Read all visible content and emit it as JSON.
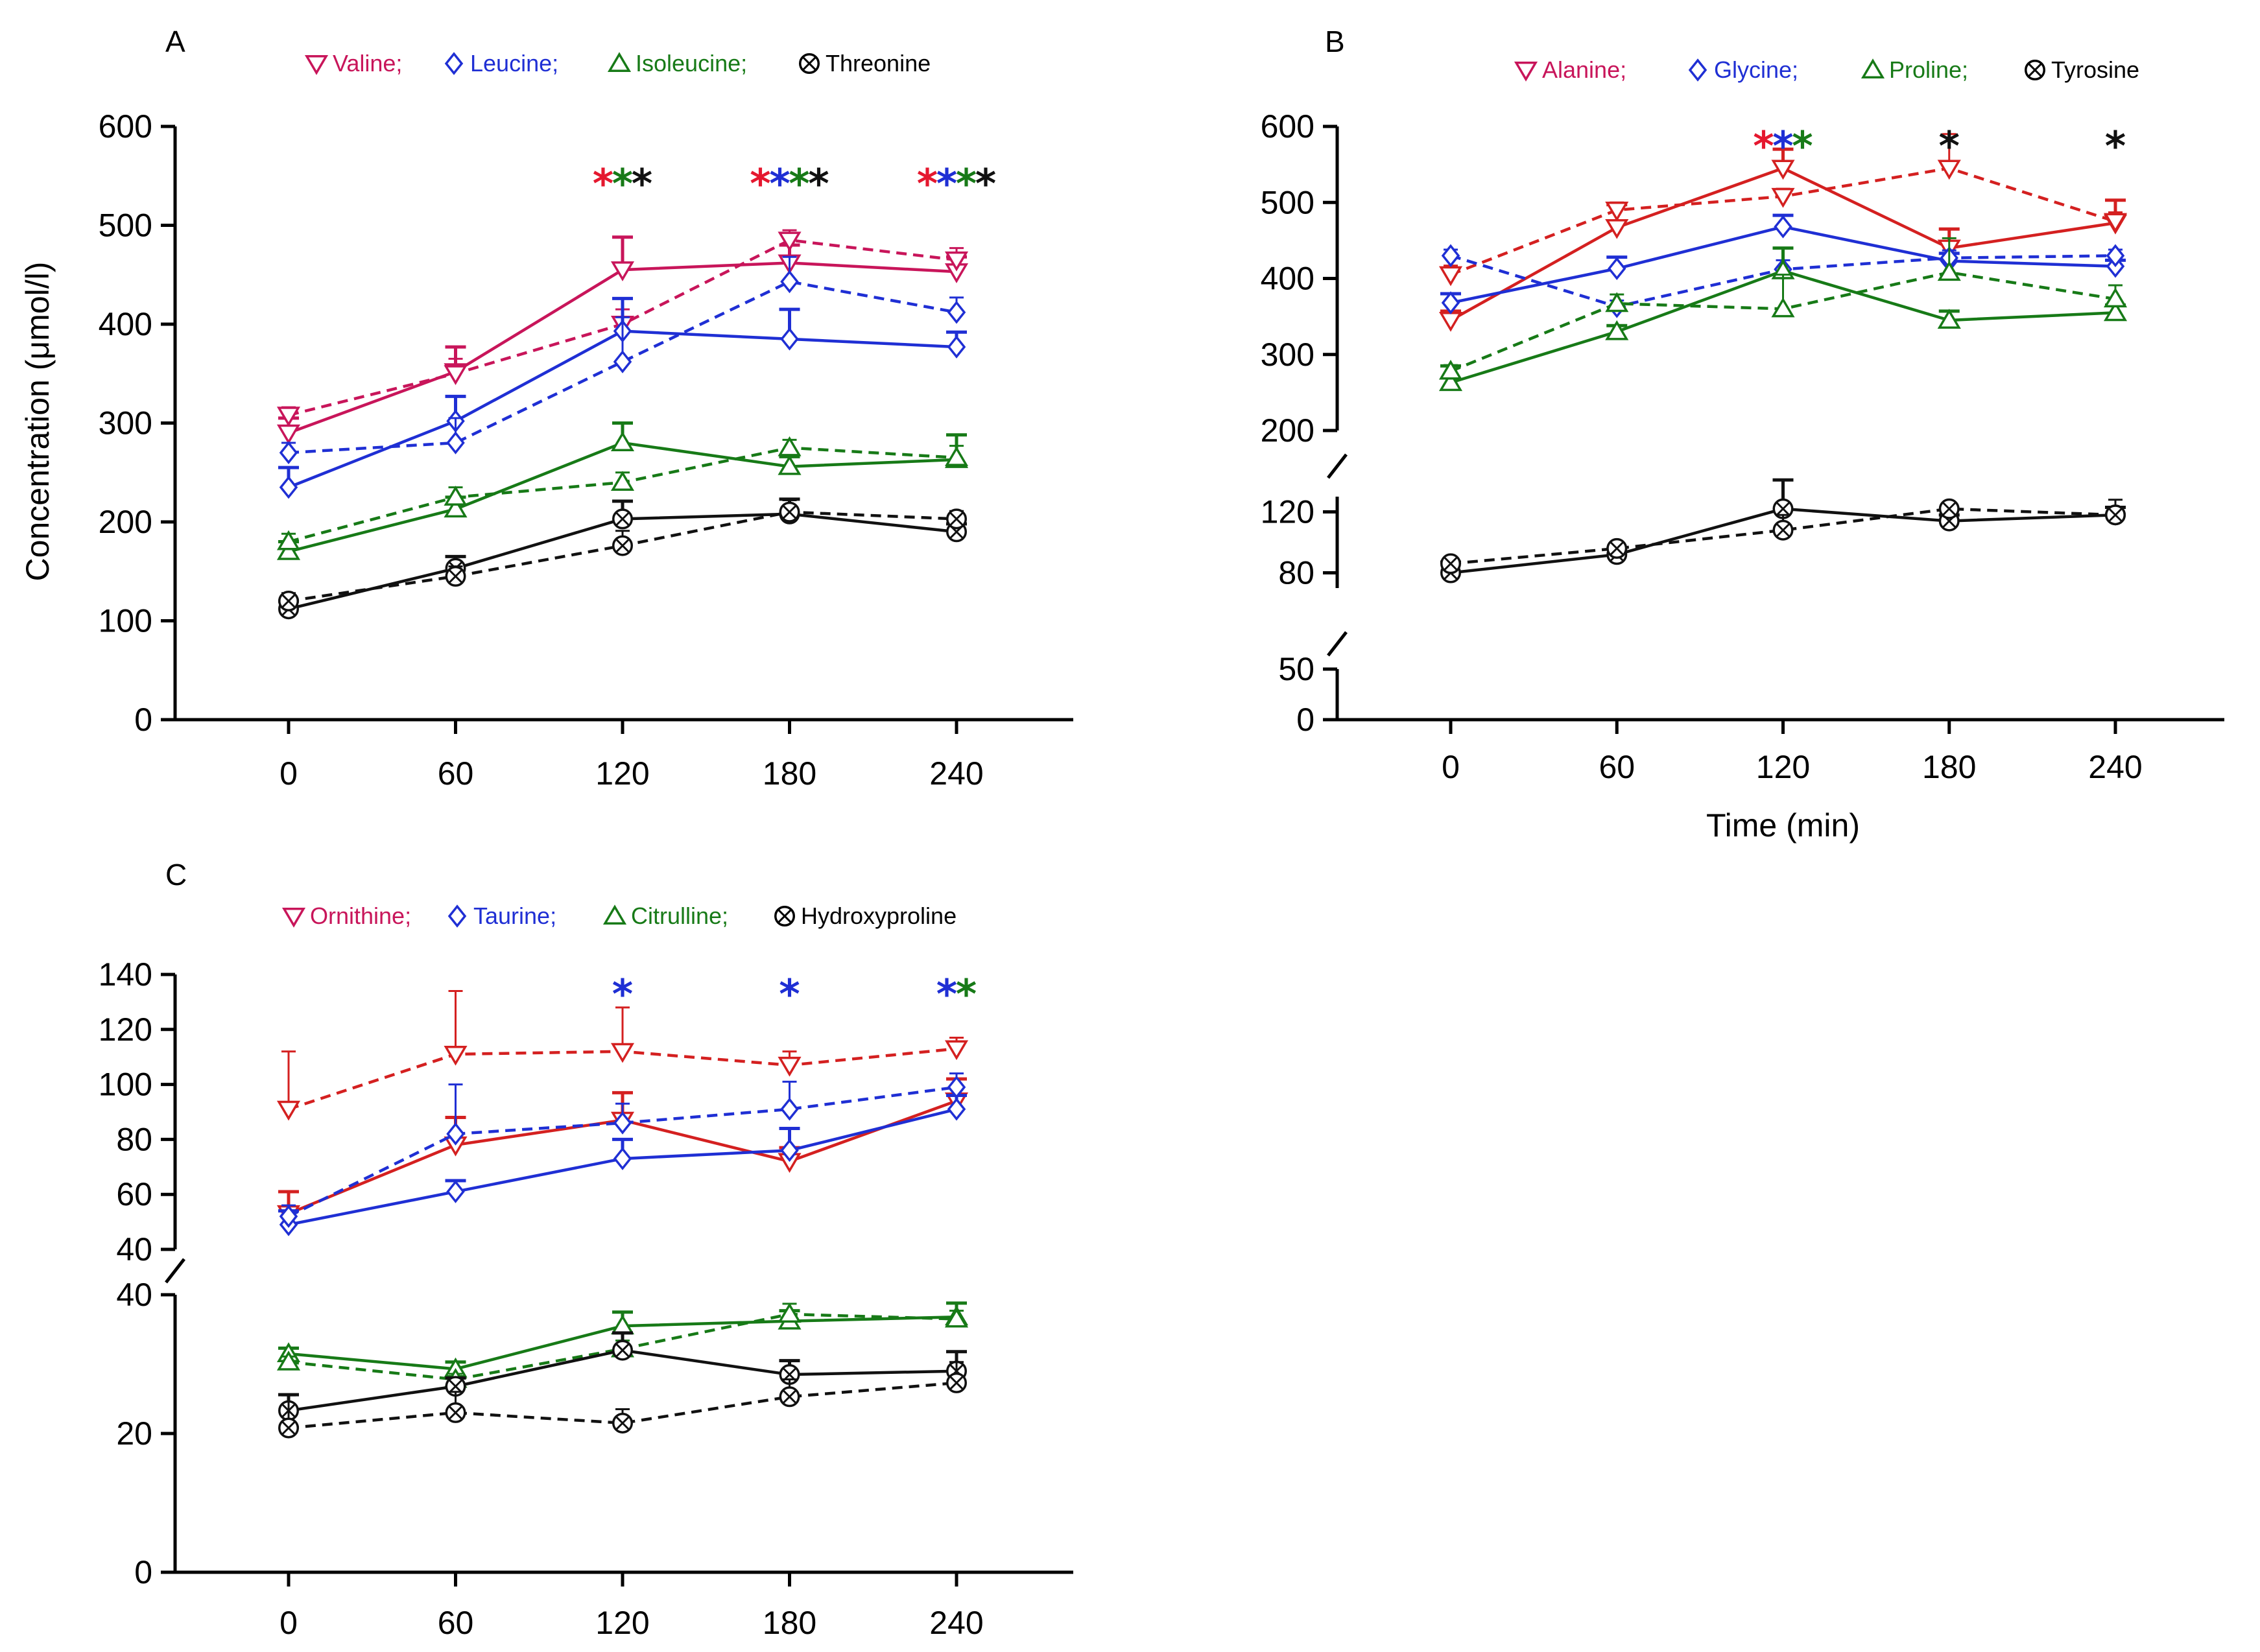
{
  "chart_data": [
    {
      "id": "A",
      "type": "line",
      "panel_label": "A",
      "title": "",
      "xlabel": "",
      "ylabel": "Concentration (μmol/l)",
      "x": [
        0,
        60,
        120,
        180,
        240
      ],
      "x_tick_labels": [
        "0",
        "60",
        "120",
        "180",
        "240"
      ],
      "xlim": [
        -40,
        290
      ],
      "y_segments": [
        {
          "range": [
            0,
            600
          ],
          "ticks": [
            0,
            100,
            200,
            300,
            400,
            500,
            600
          ],
          "tick_labels": [
            "0",
            "100",
            "200",
            "300",
            "400",
            "500",
            "600"
          ]
        }
      ],
      "legend": [
        {
          "label": "Valine;",
          "marker": "triangle-down",
          "color": "#c8155a"
        },
        {
          "label": "Leucine;",
          "marker": "diamond",
          "color": "#1f2fd4"
        },
        {
          "label": "Isoleucine;",
          "marker": "triangle-up",
          "color": "#177a17"
        },
        {
          "label": "Threonine",
          "marker": "circle-x",
          "color": "#000000"
        }
      ],
      "series": [
        {
          "name": "Valine solid",
          "color": "#c8155a",
          "marker": "triangle-down",
          "dashed": false,
          "values": [
            290,
            352,
            455,
            462,
            453
          ],
          "errors": [
            15,
            25,
            33,
            18,
            15
          ]
        },
        {
          "name": "Valine dashed",
          "color": "#c8155a",
          "marker": "triangle-down",
          "dashed": true,
          "values": [
            308,
            350,
            400,
            485,
            465
          ],
          "errors": [
            8,
            15,
            15,
            10,
            12
          ]
        },
        {
          "name": "Leucine solid",
          "color": "#1f2fd4",
          "marker": "diamond",
          "dashed": false,
          "values": [
            235,
            302,
            393,
            385,
            377
          ],
          "errors": [
            20,
            25,
            33,
            30,
            15
          ]
        },
        {
          "name": "Leucine dashed",
          "color": "#1f2fd4",
          "marker": "diamond",
          "dashed": true,
          "values": [
            270,
            280,
            362,
            443,
            412
          ],
          "errors": [
            10,
            25,
            45,
            25,
            15
          ]
        },
        {
          "name": "Isoleucine solid",
          "color": "#177a17",
          "marker": "triangle-up",
          "dashed": false,
          "values": [
            170,
            213,
            280,
            256,
            263
          ],
          "errors": [
            10,
            12,
            20,
            10,
            25
          ]
        },
        {
          "name": "Isoleucine dashed",
          "color": "#177a17",
          "marker": "triangle-up",
          "dashed": true,
          "values": [
            180,
            225,
            240,
            275,
            265
          ],
          "errors": [
            8,
            10,
            10,
            8,
            12
          ]
        },
        {
          "name": "Threonine solid",
          "color": "#111111",
          "marker": "circle-x",
          "dashed": false,
          "values": [
            112,
            153,
            203,
            208,
            190
          ],
          "errors": [
            8,
            12,
            18,
            15,
            8
          ]
        },
        {
          "name": "Threonine dashed",
          "color": "#111111",
          "marker": "circle-x",
          "dashed": true,
          "values": [
            120,
            145,
            176,
            210,
            203
          ],
          "errors": [
            8,
            10,
            15,
            12,
            8
          ]
        }
      ],
      "significance": [
        {
          "x": 120,
          "value": 562,
          "colors": [
            "#e5182f",
            "#177a17",
            "#111111"
          ]
        },
        {
          "x": 180,
          "value": 562,
          "colors": [
            "#e5182f",
            "#1f2fd4",
            "#177a17",
            "#111111"
          ]
        },
        {
          "x": 240,
          "value": 562,
          "colors": [
            "#e5182f",
            "#1f2fd4",
            "#177a17",
            "#111111"
          ]
        }
      ]
    },
    {
      "id": "B",
      "type": "line",
      "panel_label": "B",
      "title": "",
      "xlabel": "Time (min)",
      "ylabel": "",
      "x": [
        0,
        60,
        120,
        180,
        240
      ],
      "x_tick_labels": [
        "0",
        "60",
        "120",
        "180",
        "240"
      ],
      "xlim": [
        -40,
        290
      ],
      "y_segments": [
        {
          "range": [
            0,
            50
          ],
          "ticks": [
            0,
            50
          ],
          "tick_labels": [
            "0",
            "50"
          ]
        },
        {
          "range": [
            70,
            130
          ],
          "ticks": [
            80,
            120
          ],
          "tick_labels": [
            "80",
            "120"
          ]
        },
        {
          "range": [
            200,
            600
          ],
          "ticks": [
            200,
            300,
            400,
            500,
            600
          ],
          "tick_labels": [
            "200",
            "300",
            "400",
            "500",
            "600"
          ]
        }
      ],
      "legend": [
        {
          "label": "Alanine;",
          "marker": "triangle-down",
          "color": "#c8155a"
        },
        {
          "label": "Glycine;",
          "marker": "diamond",
          "color": "#1f2fd4"
        },
        {
          "label": "Proline;",
          "marker": "triangle-up",
          "color": "#177a17"
        },
        {
          "label": "Tyrosine",
          "marker": "circle-x",
          "color": "#000000"
        }
      ],
      "series": [
        {
          "name": "Alanine solid",
          "color": "#d42020",
          "marker": "triangle-down",
          "dashed": false,
          "values": [
            345,
            467,
            545,
            440,
            473
          ],
          "errors": [
            12,
            30,
            25,
            25,
            30
          ]
        },
        {
          "name": "Alanine dashed",
          "color": "#d42020",
          "marker": "triangle-down",
          "dashed": true,
          "values": [
            405,
            490,
            508,
            545,
            475
          ],
          "errors": [
            12,
            10,
            10,
            45,
            12
          ]
        },
        {
          "name": "Glycine solid",
          "color": "#1f2fd4",
          "marker": "diamond",
          "dashed": false,
          "values": [
            368,
            413,
            468,
            423,
            416
          ],
          "errors": [
            12,
            15,
            15,
            10,
            8
          ]
        },
        {
          "name": "Glycine dashed",
          "color": "#1f2fd4",
          "marker": "diamond",
          "dashed": true,
          "values": [
            430,
            363,
            412,
            427,
            430
          ],
          "errors": [
            8,
            8,
            12,
            10,
            8
          ]
        },
        {
          "name": "Proline solid",
          "color": "#177a17",
          "marker": "triangle-up",
          "dashed": false,
          "values": [
            263,
            330,
            410,
            345,
            355
          ],
          "errors": [
            22,
            8,
            30,
            12,
            10
          ]
        },
        {
          "name": "Proline dashed",
          "color": "#177a17",
          "marker": "triangle-up",
          "dashed": true,
          "values": [
            278,
            367,
            360,
            408,
            373
          ],
          "errors": [
            8,
            12,
            45,
            45,
            18
          ]
        },
        {
          "name": "Tyrosine solid",
          "color": "#111111",
          "marker": "circle-x",
          "dashed": false,
          "values": [
            80,
            92,
            122,
            114,
            118
          ],
          "errors": [
            7,
            4,
            13,
            4,
            5
          ]
        },
        {
          "name": "Tyrosine dashed",
          "color": "#111111",
          "marker": "circle-x",
          "dashed": true,
          "values": [
            86,
            96,
            108,
            122,
            118
          ],
          "errors": [
            3,
            3,
            10,
            3,
            10
          ]
        }
      ],
      "significance": [
        {
          "x": 120,
          "value": 600,
          "colors": [
            "#e5182f",
            "#1f2fd4",
            "#177a17"
          ]
        },
        {
          "x": 180,
          "value": 600,
          "colors": [
            "#111111"
          ]
        },
        {
          "x": 240,
          "value": 600,
          "colors": [
            "#111111"
          ]
        }
      ]
    },
    {
      "id": "C",
      "type": "line",
      "panel_label": "C",
      "title": "",
      "xlabel": "",
      "ylabel": "",
      "x": [
        0,
        60,
        120,
        180,
        240
      ],
      "x_tick_labels": [
        "0",
        "60",
        "120",
        "180",
        "240"
      ],
      "xlim": [
        -40,
        290
      ],
      "y_segments": [
        {
          "range": [
            0,
            40
          ],
          "ticks": [
            0,
            20,
            40
          ],
          "tick_labels": [
            "0",
            "20",
            "40"
          ]
        },
        {
          "range": [
            40,
            140
          ],
          "ticks": [
            40,
            60,
            80,
            100,
            120,
            140
          ],
          "tick_labels": [
            "40",
            "60",
            "80",
            "100",
            "120",
            "140"
          ]
        }
      ],
      "legend": [
        {
          "label": "Ornithine;",
          "marker": "triangle-down",
          "color": "#c8155a"
        },
        {
          "label": "Taurine;",
          "marker": "diamond",
          "color": "#1f2fd4"
        },
        {
          "label": "Citrulline;",
          "marker": "triangle-up",
          "color": "#177a17"
        },
        {
          "label": "Hydroxyproline",
          "marker": "circle-x",
          "color": "#000000"
        }
      ],
      "series": [
        {
          "name": "Ornithine solid",
          "color": "#d42020",
          "marker": "triangle-down",
          "dashed": false,
          "values": [
            53,
            78,
            87,
            72,
            94
          ],
          "errors": [
            8,
            10,
            10,
            5,
            8
          ]
        },
        {
          "name": "Ornithine dashed",
          "color": "#d42020",
          "marker": "triangle-down",
          "dashed": true,
          "values": [
            91,
            111,
            112,
            107,
            113
          ],
          "errors": [
            21,
            23,
            16,
            5,
            4
          ]
        },
        {
          "name": "Taurine solid",
          "color": "#1f2fd4",
          "marker": "diamond",
          "dashed": false,
          "values": [
            49,
            61,
            73,
            76,
            91
          ],
          "errors": [
            5,
            4,
            7,
            8,
            5
          ]
        },
        {
          "name": "Taurine dashed",
          "color": "#1f2fd4",
          "marker": "diamond",
          "dashed": true,
          "values": [
            52,
            82,
            86,
            91,
            99
          ],
          "errors": [
            4,
            18,
            7,
            10,
            5
          ]
        },
        {
          "name": "Citrulline solid",
          "color": "#177a17",
          "marker": "triangle-up",
          "dashed": false,
          "values": [
            31.5,
            29.3,
            35.5,
            36.2,
            36.8
          ],
          "errors": [
            0.8,
            1,
            2,
            1.5,
            2
          ]
        },
        {
          "name": "Citrulline dashed",
          "color": "#177a17",
          "marker": "triangle-up",
          "dashed": true,
          "values": [
            30.3,
            27.8,
            32.2,
            37.2,
            36.5
          ],
          "errors": [
            0.8,
            0.8,
            1.2,
            1.5,
            1.2
          ]
        },
        {
          "name": "Hydroxyproline solid",
          "color": "#111111",
          "marker": "circle-x",
          "dashed": false,
          "values": [
            23.3,
            26.8,
            32,
            28.5,
            29
          ],
          "errors": [
            2.3,
            1.2,
            2.5,
            2,
            2.8
          ]
        },
        {
          "name": "Hydroxyproline dashed",
          "color": "#111111",
          "marker": "circle-x",
          "dashed": true,
          "values": [
            20.8,
            23,
            21.5,
            25.3,
            27.3
          ],
          "errors": [
            4.7,
            3,
            2,
            2.5,
            3
          ]
        }
      ],
      "significance": [
        {
          "x": 120,
          "value": 140,
          "colors": [
            "#1f2fd4"
          ]
        },
        {
          "x": 180,
          "value": 140,
          "colors": [
            "#1f2fd4"
          ]
        },
        {
          "x": 240,
          "value": 140,
          "colors": [
            "#1f2fd4",
            "#177a17"
          ]
        }
      ]
    }
  ]
}
